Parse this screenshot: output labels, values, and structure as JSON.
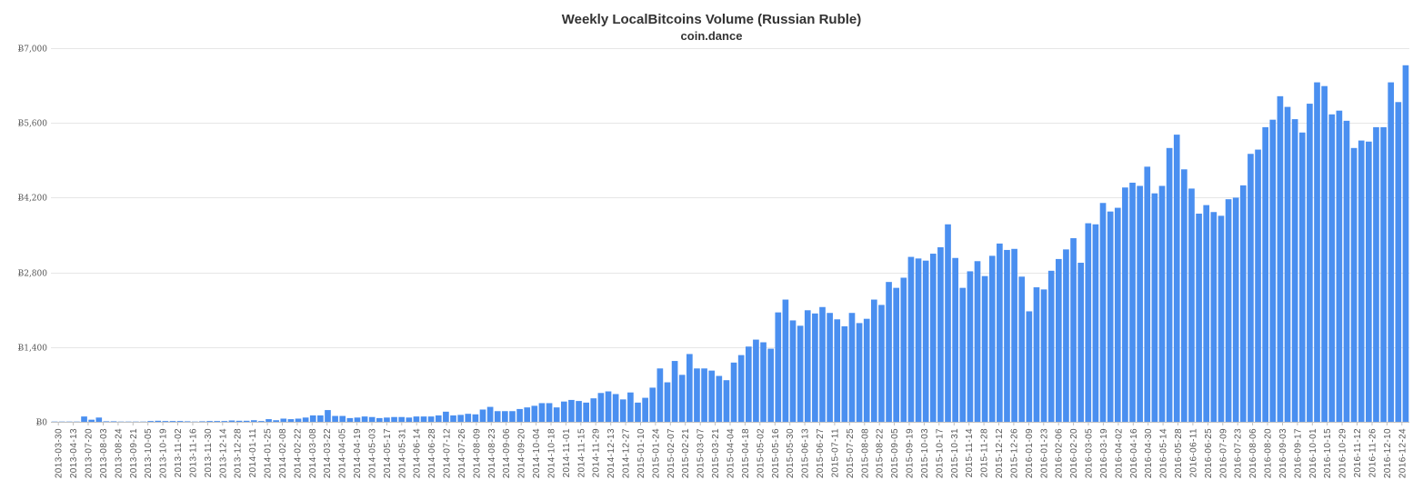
{
  "chart_data": {
    "type": "bar",
    "title": "Weekly LocalBitcoins Volume (Russian Ruble)",
    "subtitle": "coin.dance",
    "xlabel": "",
    "ylabel": "",
    "ylim": [
      0,
      7000
    ],
    "yticks": [
      0,
      1400,
      2800,
      4200,
      5600,
      7000
    ],
    "ytick_labels": [
      "Ƀ0",
      "Ƀ1,400",
      "Ƀ2,800",
      "Ƀ4,200",
      "Ƀ5,600",
      "Ƀ7,000"
    ],
    "grid": true,
    "legend": "none",
    "bar_color": "#4a8ff0",
    "x_labels": [
      "2013-03-30",
      "2013-04-13",
      "2013-07-20",
      "2013-08-03",
      "2013-08-24",
      "2013-09-21",
      "2013-10-05",
      "2013-10-19",
      "2013-11-02",
      "2013-11-16",
      "2013-11-30",
      "2013-12-14",
      "2013-12-28",
      "2014-01-11",
      "2014-01-25",
      "2014-02-08",
      "2014-02-22",
      "2014-03-08",
      "2014-03-22",
      "2014-04-05",
      "2014-04-19",
      "2014-05-03",
      "2014-05-17",
      "2014-05-31",
      "2014-06-14",
      "2014-06-28",
      "2014-07-12",
      "2014-07-26",
      "2014-08-09",
      "2014-08-23",
      "2014-09-06",
      "2014-09-20",
      "2014-10-04",
      "2014-10-18",
      "2014-11-01",
      "2014-11-15",
      "2014-11-29",
      "2014-12-13",
      "2014-12-27",
      "2015-01-10",
      "2015-01-24",
      "2015-02-07",
      "2015-02-21",
      "2015-03-07",
      "2015-03-21",
      "2015-04-04",
      "2015-04-18",
      "2015-05-02",
      "2015-05-16",
      "2015-05-30",
      "2015-06-13",
      "2015-06-27",
      "2015-07-11",
      "2015-07-25",
      "2015-08-08",
      "2015-08-22",
      "2015-09-05",
      "2015-09-19",
      "2015-10-03",
      "2015-10-17",
      "2015-10-31",
      "2015-11-14",
      "2015-11-28",
      "2015-12-12",
      "2015-12-26",
      "2016-01-09",
      "2016-01-23",
      "2016-02-06",
      "2016-02-20",
      "2016-03-05",
      "2016-03-19",
      "2016-04-02",
      "2016-04-16",
      "2016-04-30",
      "2016-05-14",
      "2016-05-28",
      "2016-06-11",
      "2016-06-25",
      "2016-07-09",
      "2016-07-23",
      "2016-08-06",
      "2016-08-20",
      "2016-09-03",
      "2016-09-17",
      "2016-10-01",
      "2016-10-15",
      "2016-10-29",
      "2016-11-12",
      "2016-11-26",
      "2016-12-10",
      "2016-12-24"
    ],
    "values": [
      5,
      5,
      5,
      5,
      100,
      40,
      80,
      10,
      10,
      5,
      5,
      5,
      5,
      15,
      20,
      15,
      15,
      15,
      10,
      5,
      10,
      15,
      15,
      15,
      25,
      20,
      20,
      30,
      15,
      50,
      30,
      60,
      50,
      60,
      80,
      120,
      120,
      220,
      110,
      110,
      70,
      80,
      100,
      90,
      70,
      80,
      90,
      90,
      80,
      100,
      100,
      100,
      120,
      190,
      120,
      130,
      150,
      140,
      230,
      280,
      200,
      200,
      200,
      240,
      270,
      300,
      350,
      350,
      270,
      380,
      410,
      390,
      360,
      440,
      540,
      570,
      520,
      420,
      550,
      360,
      450,
      640,
      1000,
      740,
      1140,
      880,
      1270,
      1000,
      1000,
      960,
      860,
      780,
      1110,
      1250,
      1410,
      1540,
      1490,
      1370,
      2050,
      2290,
      1900,
      1800,
      2090,
      2030,
      2150,
      2040,
      1920,
      1790,
      2040,
      1850,
      1930,
      2290,
      2190,
      2620,
      2510,
      2700,
      3090,
      3060,
      3020,
      3150,
      3270,
      3700,
      3070,
      2510,
      2820,
      3010,
      2730,
      3110,
      3340,
      3220,
      3240,
      2720,
      2070,
      2520,
      2480,
      2830,
      3050,
      3230,
      3440,
      2980,
      3720,
      3700,
      4100,
      3940,
      4010,
      4390,
      4480,
      4420,
      4780,
      4280,
      4420,
      5130,
      5380,
      4730,
      4370,
      3900,
      4060,
      3930,
      3860,
      4170,
      4200,
      4430,
      5020,
      5100,
      5520,
      5660,
      6100,
      5900,
      5670,
      5420,
      5960,
      6360,
      6290,
      5760,
      5830,
      5640,
      5130,
      5270,
      5250,
      5520,
      5520,
      6360,
      5990,
      6680
    ]
  }
}
